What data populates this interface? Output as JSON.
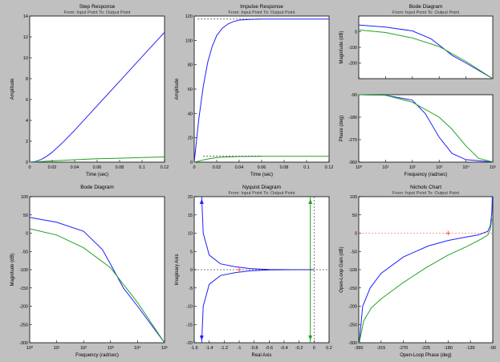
{
  "colors": {
    "background": "#c0c0c0",
    "axes": "#ffffff",
    "blue": "#1f1fff",
    "green": "#22a222",
    "ref": "#606060",
    "marker": "#ff3030"
  },
  "chart_data": [
    {
      "type": "line",
      "title": "Step Response",
      "subtitle": "From: Input Point  To: Output Point",
      "xlabel": "Time (sec)",
      "ylabel": "Amplitude",
      "xlim": [
        0,
        0.12
      ],
      "ylim": [
        0,
        14
      ],
      "xticks": [
        0,
        0.02,
        0.04,
        0.06,
        0.08,
        0.1,
        0.12
      ],
      "xticklabels": [
        "0",
        "0.02",
        "0.04",
        "0.06",
        "0.08",
        "0.1",
        "0.12"
      ],
      "yticks": [
        0,
        2,
        4,
        6,
        8,
        10,
        12,
        14
      ],
      "yticklabels": [
        "0",
        "2",
        "4",
        "6",
        "8",
        "10",
        "12",
        "14"
      ],
      "series": [
        {
          "color": "blue",
          "x": [
            0,
            0.005,
            0.01,
            0.015,
            0.02,
            0.03,
            0.04,
            0.06,
            0.08,
            0.1,
            0.12
          ],
          "y": [
            0,
            0.05,
            0.25,
            0.55,
            0.95,
            1.95,
            3.05,
            5.4,
            7.75,
            10.1,
            12.45
          ]
        },
        {
          "color": "green",
          "x": [
            0,
            0.005,
            0.01,
            0.02,
            0.03,
            0.04,
            0.06,
            0.08,
            0.1,
            0.12
          ],
          "y": [
            0,
            0.02,
            0.05,
            0.12,
            0.18,
            0.23,
            0.32,
            0.38,
            0.44,
            0.5
          ]
        }
      ]
    },
    {
      "type": "line",
      "title": "Impulse Response",
      "subtitle": "From: Input Point  To: Output Point",
      "xlabel": "Time (sec)",
      "ylabel": "Amplitude",
      "xlim": [
        0,
        0.12
      ],
      "ylim": [
        0,
        120
      ],
      "xticks": [
        0,
        0.02,
        0.04,
        0.06,
        0.08,
        0.1,
        0.12
      ],
      "xticklabels": [
        "0",
        "0.02",
        "0.04",
        "0.06",
        "0.08",
        "0.1",
        "0.12"
      ],
      "yticks": [
        0,
        20,
        40,
        60,
        80,
        100,
        120
      ],
      "yticklabels": [
        "0",
        "20",
        "40",
        "60",
        "80",
        "100",
        "120"
      ],
      "refs": [
        {
          "y": 117.5,
          "x0": 0.003,
          "x1": 0.06
        },
        {
          "y": 4.8,
          "x0": 0.008,
          "x1": 0.06
        }
      ],
      "series": [
        {
          "color": "blue",
          "x": [
            0,
            0.004,
            0.008,
            0.012,
            0.016,
            0.02,
            0.025,
            0.03,
            0.035,
            0.04,
            0.05,
            0.06,
            0.12
          ],
          "y": [
            0,
            35,
            62,
            82,
            95,
            104,
            110,
            113.5,
            115.5,
            116.7,
            117.3,
            117.5,
            117.5
          ]
        },
        {
          "color": "green",
          "x": [
            0,
            0.004,
            0.008,
            0.012,
            0.016,
            0.02,
            0.03,
            0.04,
            0.06,
            0.12
          ],
          "y": [
            0,
            0.8,
            1.8,
            2.6,
            3.2,
            3.7,
            4.3,
            4.6,
            4.8,
            4.8
          ]
        }
      ]
    },
    {
      "type": "line",
      "title": "Bode Diagram",
      "subtitle": "From: Input Point  To: Output Point",
      "xlabel": "Frequency  (rad/sec)",
      "xscale": "log",
      "xlim": [
        1,
        100000
      ],
      "xticks": [
        1,
        10,
        100,
        1000,
        10000,
        100000
      ],
      "xticklabels": [
        "10⁰",
        "10¹",
        "10²",
        "10³",
        "10⁴",
        "10⁵"
      ],
      "panels": [
        {
          "ylabel": "Magnitude (dB)",
          "ylim": [
            -300,
            100
          ],
          "yticks": [
            -300,
            -200,
            -100,
            0,
            100
          ],
          "yticklabels": [
            "",
            "-200",
            "-100",
            "0",
            ""
          ],
          "series": [
            {
              "color": "blue",
              "x": [
                1,
                10,
                100,
                500,
                1000,
                3000,
                10000,
                100000
              ],
              "y": [
                43,
                30,
                5,
                -45,
                -85,
                -150,
                -200,
                -300
              ]
            },
            {
              "color": "green",
              "x": [
                1,
                10,
                100,
                1000,
                10000,
                100000
              ],
              "y": [
                12,
                -5,
                -40,
                -95,
                -190,
                -300
              ]
            }
          ]
        },
        {
          "ylabel": "Phase (deg)",
          "ylim": [
            -360,
            -90
          ],
          "yticks": [
            -360,
            -270,
            -180,
            -90
          ],
          "yticklabels": [
            "-360",
            "-270",
            "-180",
            "-90"
          ],
          "series": [
            {
              "color": "blue",
              "x": [
                1,
                10,
                100,
                300,
                1000,
                3000,
                10000,
                100000
              ],
              "y": [
                -90,
                -92,
                -112,
                -165,
                -260,
                -325,
                -350,
                -359
              ]
            },
            {
              "color": "green",
              "x": [
                1,
                10,
                100,
                1000,
                3000,
                10000,
                30000,
                100000
              ],
              "y": [
                -90,
                -92,
                -120,
                -180,
                -228,
                -295,
                -345,
                -359
              ]
            }
          ]
        }
      ]
    },
    {
      "type": "line",
      "title": "Bode Diagram",
      "subtitle": "",
      "xlabel": "Frequency  (rad/sec)",
      "ylabel": "Magnitude (dB)",
      "xscale": "log",
      "xlim": [
        1,
        100000
      ],
      "ylim": [
        -300,
        100
      ],
      "xticks": [
        1,
        10,
        100,
        1000,
        10000,
        100000
      ],
      "xticklabels": [
        "10⁰",
        "10¹",
        "10²",
        "10³",
        "10⁴",
        "10⁵"
      ],
      "yticks": [
        -300,
        -250,
        -200,
        -150,
        -100,
        -50,
        0,
        50,
        100
      ],
      "yticklabels": [
        "-300",
        "-250",
        "-200",
        "-150",
        "-100",
        "-50",
        "0",
        "50",
        "100"
      ],
      "series": [
        {
          "color": "blue",
          "x": [
            1,
            10,
            100,
            500,
            1000,
            3000,
            10000,
            100000
          ],
          "y": [
            43,
            30,
            5,
            -45,
            -85,
            -150,
            -200,
            -300
          ]
        },
        {
          "color": "green",
          "x": [
            1,
            10,
            100,
            1000,
            10000,
            100000
          ],
          "y": [
            12,
            -5,
            -40,
            -95,
            -190,
            -300
          ]
        }
      ]
    },
    {
      "type": "line",
      "title": "Nyquist Diagram",
      "subtitle": "From: Input Point  To: Output Point",
      "xlabel": "Real Axis",
      "ylabel": "Imaginary Axis",
      "xlim": [
        -1.6,
        0.2
      ],
      "ylim": [
        -20,
        20
      ],
      "xticks": [
        -1.6,
        -1.4,
        -1.2,
        -1,
        -0.8,
        -0.6,
        -0.4,
        -0.2,
        0,
        0.2
      ],
      "xticklabels": [
        "-1.6",
        "-1.4",
        "-1.2",
        "-1",
        "-0.8",
        "-0.6",
        "-0.4",
        "-0.2",
        "0",
        "0.2"
      ],
      "yticks": [
        -20,
        -15,
        -10,
        -5,
        0,
        5,
        10,
        15,
        20
      ],
      "yticklabels": [
        "-20",
        "-15",
        "-10",
        "-5",
        "0",
        "5",
        "10",
        "15",
        "20"
      ],
      "critical_point": [
        -1,
        0
      ],
      "series": [
        {
          "color": "blue",
          "x": [
            -1.5,
            -1.48,
            -1.4,
            -1.25,
            -1.05,
            -0.85,
            -0.6,
            -0.3,
            0
          ],
          "y": [
            20,
            10,
            4,
            1.6,
            0.8,
            0.3,
            0.05,
            0,
            0
          ]
        },
        {
          "color": "blue",
          "x": [
            -1.5,
            -1.48,
            -1.4,
            -1.25,
            -1.05,
            -0.85,
            -0.6,
            -0.3,
            0
          ],
          "y": [
            -20,
            -10,
            -4,
            -1.6,
            -0.8,
            -0.3,
            -0.05,
            0,
            0
          ]
        },
        {
          "color": "green",
          "x": [
            -0.05,
            -0.05
          ],
          "y": [
            20,
            -20
          ]
        }
      ]
    },
    {
      "type": "line",
      "title": "Nichols Chart",
      "subtitle": "From: Input Point  To: Output Point",
      "xlabel": "Open-Loop Phase (deg)",
      "ylabel": "Open-Loop Gain (dB)",
      "xlim": [
        -360,
        -90
      ],
      "ylim": [
        -300,
        100
      ],
      "xticks": [
        -360,
        -315,
        -270,
        -225,
        -180,
        -135,
        -90
      ],
      "xticklabels": [
        "-360",
        "-315",
        "-270",
        "-225",
        "-180",
        "-135",
        "-90"
      ],
      "yticks": [
        -300,
        -250,
        -200,
        -150,
        -100,
        -50,
        0,
        50,
        100
      ],
      "yticklabels": [
        "-300",
        "-250",
        "-200",
        "-150",
        "-100",
        "-50",
        "0",
        "50",
        "100"
      ],
      "critical_point": [
        -180,
        0
      ],
      "series": [
        {
          "color": "blue",
          "x": [
            -359,
            -352,
            -337,
            -315,
            -270,
            -220,
            -180,
            -150,
            -120,
            -100,
            -95,
            -92,
            -91
          ],
          "y": [
            -300,
            -200,
            -150,
            -110,
            -65,
            -35,
            -20,
            -12,
            -5,
            5,
            20,
            55,
            100
          ]
        },
        {
          "color": "green",
          "x": [
            -359,
            -350,
            -335,
            -315,
            -270,
            -225,
            -180,
            -140,
            -112,
            -100,
            -95,
            -92
          ],
          "y": [
            -300,
            -240,
            -205,
            -180,
            -135,
            -95,
            -60,
            -35,
            -15,
            -5,
            10,
            40
          ]
        }
      ]
    }
  ]
}
